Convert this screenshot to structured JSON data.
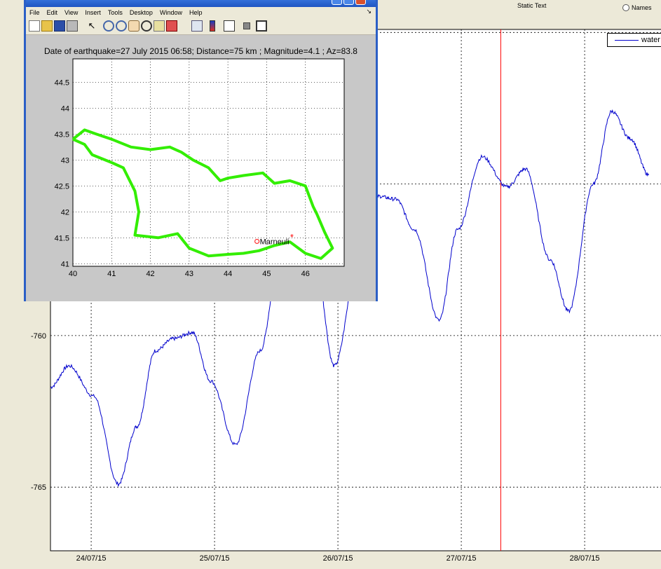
{
  "header": {
    "static_text": "Static Text",
    "radio_label": "Names"
  },
  "legend": {
    "entries": [
      "water"
    ]
  },
  "main_chart": {
    "xticks": [
      "24/07/15",
      "25/07/15",
      "26/07/15",
      "27/07/15",
      "28/07/15"
    ],
    "yticks": [
      "-760",
      "-765"
    ]
  },
  "figure_window": {
    "menu": [
      "File",
      "Edit",
      "View",
      "Insert",
      "Tools",
      "Desktop",
      "Window",
      "Help"
    ],
    "title": "Date of earthquake=27 July 2015 06:58; Distance=75 km ; Magnitude=4.1 ; Az=83.8",
    "station_label": "Marneuli"
  },
  "chart_data": [
    {
      "type": "line",
      "series": [
        {
          "name": "water",
          "color": "#0000cc",
          "x": [
            0.0,
            0.15,
            0.35,
            0.55,
            0.7,
            0.85,
            1.0,
            1.15,
            1.3,
            1.5,
            1.7,
            1.85,
            2.0,
            2.15,
            2.3,
            2.5,
            2.65,
            2.8,
            2.95,
            3.15,
            3.3,
            3.5,
            3.7,
            3.85,
            4.05,
            4.2,
            4.4,
            4.55,
            4.7,
            4.85
          ],
          "y": [
            -761.7,
            -761.0,
            -762.0,
            -764.9,
            -763.0,
            -760.5,
            -760.1,
            -759.9,
            -761.5,
            -763.6,
            -760.5,
            -757.7,
            -757.4,
            -757.7,
            -761.0,
            -757.5,
            -755.4,
            -755.5,
            -756.5,
            -759.5,
            -756.5,
            -754.1,
            -755.1,
            -754.5,
            -757.5,
            -759.2,
            -755.0,
            -752.6,
            -753.5,
            -754.7
          ]
        }
      ],
      "xticks": [
        "24/07/15",
        "25/07/15",
        "26/07/15",
        "27/07/15",
        "28/07/15"
      ],
      "yticks": [
        -760,
        -765
      ],
      "ylim": [
        -767.1,
        -749.9
      ],
      "grid": true,
      "legend": "top-right",
      "vline_color": "#ff0000"
    },
    {
      "type": "line",
      "title": "Date of earthquake=27 July 2015 06:58; Distance=75 km ; Magnitude=4.1 ; Az=83.8",
      "xlim": [
        40,
        47
      ],
      "ylim": [
        40.95,
        44.95
      ],
      "xticks": [
        40,
        41,
        42,
        43,
        44,
        45,
        46
      ],
      "yticks": [
        41,
        41.5,
        42,
        42.5,
        43,
        43.5,
        44,
        44.5
      ],
      "grid": true,
      "series": [
        {
          "color": "#33ee00",
          "x": [
            40.0,
            40.3,
            40.6,
            41.0,
            41.5,
            42.0,
            42.5,
            42.8,
            43.1,
            43.5,
            43.8,
            44.0,
            44.4,
            44.9,
            45.2,
            45.6,
            46.0,
            46.2,
            46.3,
            46.5,
            46.7,
            46.4,
            46.0,
            45.6,
            45.2,
            44.8,
            44.4,
            44.0,
            43.5,
            43.0,
            42.7,
            42.2,
            41.6,
            41.7,
            41.6,
            41.3,
            41.0,
            40.5,
            40.3,
            40.0
          ],
          "y": [
            43.4,
            43.58,
            43.5,
            43.4,
            43.25,
            43.2,
            43.25,
            43.15,
            43.0,
            42.85,
            42.6,
            42.65,
            42.7,
            42.75,
            42.55,
            42.6,
            42.5,
            42.1,
            41.95,
            41.6,
            41.3,
            41.1,
            41.2,
            41.42,
            41.35,
            41.25,
            41.2,
            41.18,
            41.15,
            41.3,
            41.58,
            41.5,
            41.55,
            42.0,
            42.4,
            42.85,
            42.95,
            43.1,
            43.3,
            43.4
          ]
        }
      ],
      "markers": [
        {
          "label": "Marneuli",
          "x": 44.75,
          "y": 41.43,
          "color": "#ff3333"
        },
        {
          "x": 45.65,
          "y": 41.52,
          "color": "#ff0000"
        }
      ]
    }
  ]
}
